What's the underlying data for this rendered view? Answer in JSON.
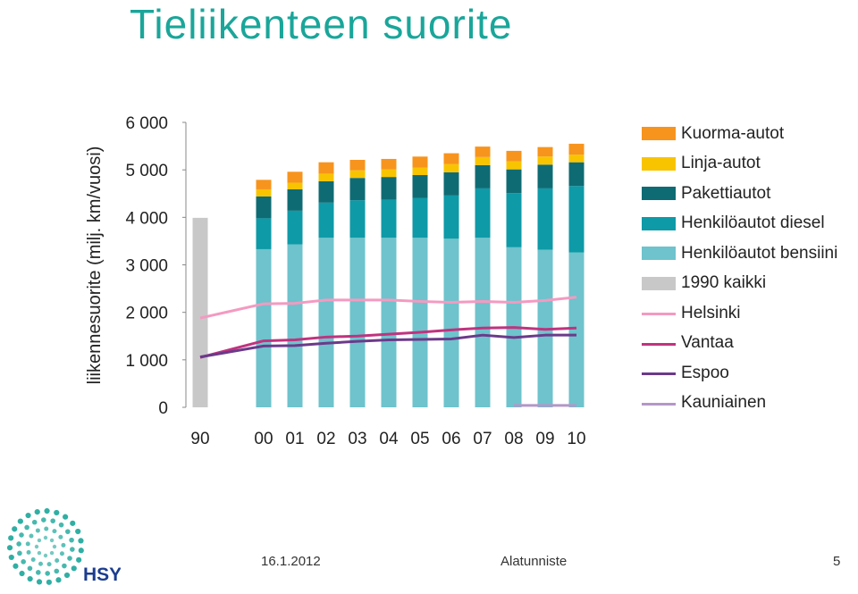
{
  "title": "Tieliikenteen suorite",
  "chart_data": {
    "type": "bar",
    "ylabel": "liikennesuorite (milj. km/vuosi)",
    "ylim": [
      0,
      6000
    ],
    "yticks": [
      0,
      1000,
      2000,
      3000,
      4000,
      5000,
      6000
    ],
    "ytick_labels": [
      "0",
      "1 000",
      "2 000",
      "3 000",
      "4 000",
      "5 000",
      "6 000"
    ],
    "categories": [
      "90",
      "00",
      "01",
      "02",
      "03",
      "04",
      "05",
      "06",
      "07",
      "08",
      "09",
      "10"
    ],
    "stacked": true,
    "grid": false,
    "legend_position": "right",
    "series": [
      {
        "name": "Henkilöautot bensiini",
        "color": "#6ec3cc",
        "values": [
          0,
          3330,
          3430,
          3570,
          3570,
          3570,
          3570,
          3550,
          3570,
          3370,
          3320,
          3260
        ]
      },
      {
        "name": "Henkilöautot diesel",
        "color": "#0e9aa7",
        "values": [
          0,
          650,
          710,
          740,
          790,
          800,
          840,
          910,
          1040,
          1140,
          1290,
          1400
        ]
      },
      {
        "name": "Pakettiautot",
        "color": "#0f6b73",
        "values": [
          0,
          460,
          450,
          450,
          470,
          480,
          480,
          490,
          490,
          500,
          500,
          500
        ]
      },
      {
        "name": "Linja-autot",
        "color": "#f8c400",
        "values": [
          0,
          150,
          140,
          160,
          160,
          160,
          160,
          170,
          170,
          170,
          170,
          160
        ]
      },
      {
        "name": "Kuorma-autot",
        "color": "#f7941d",
        "values": [
          0,
          200,
          230,
          240,
          220,
          220,
          230,
          230,
          220,
          220,
          200,
          230
        ]
      },
      {
        "name": "1990 kaikki",
        "color": "#c8c8c8",
        "values": [
          3990,
          0,
          0,
          0,
          0,
          0,
          0,
          0,
          0,
          0,
          0,
          0
        ]
      }
    ],
    "lines": [
      {
        "name": "Helsinki",
        "color": "#f49ac1",
        "values": [
          1880,
          2180,
          2190,
          2260,
          2260,
          2260,
          2230,
          2210,
          2230,
          2210,
          2250,
          2320
        ]
      },
      {
        "name": "Vantaa",
        "color": "#c0337f",
        "values": [
          1050,
          1400,
          1420,
          1480,
          1500,
          1540,
          1580,
          1630,
          1670,
          1680,
          1640,
          1670
        ]
      },
      {
        "name": "Espoo",
        "color": "#6b3a8a",
        "values": [
          1060,
          1290,
          1300,
          1350,
          1390,
          1420,
          1430,
          1440,
          1520,
          1470,
          1520,
          1520
        ]
      },
      {
        "name": "Kauniainen",
        "color": "#b497c8",
        "values": [
          null,
          null,
          null,
          null,
          null,
          null,
          null,
          null,
          null,
          40,
          40,
          40
        ]
      }
    ],
    "legend_order": [
      "Kuorma-autot",
      "Linja-autot",
      "Pakettiautot",
      "Henkilöautot diesel",
      "Henkilöautot bensiini",
      "1990 kaikki",
      "Helsinki",
      "Vantaa",
      "Espoo",
      "Kauniainen"
    ]
  },
  "footer": {
    "date": "16.1.2012",
    "center": "Alatunniste",
    "page": "5"
  },
  "logo": {
    "text": "HSY",
    "color": "#1aa69a",
    "text_color": "#1b3d8f"
  }
}
